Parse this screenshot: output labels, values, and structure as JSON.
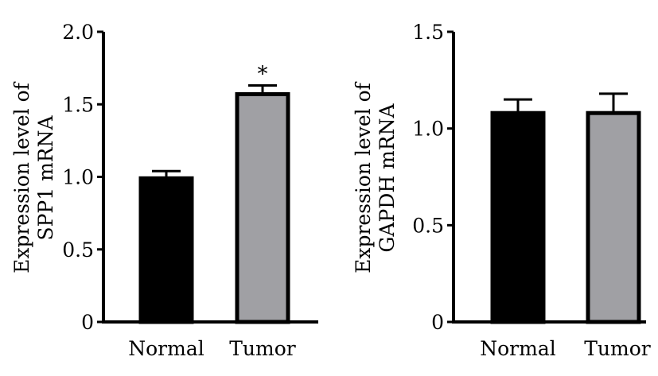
{
  "chart_data": [
    {
      "type": "bar",
      "title": "",
      "ylabel_lines": [
        "Expression level of",
        "SPP1 mRNA"
      ],
      "xlabel": "",
      "categories": [
        "Normal",
        "Tumor"
      ],
      "values": [
        0.99,
        1.57
      ],
      "errors": [
        0.05,
        0.06
      ],
      "significance": [
        "",
        "*"
      ],
      "bar_colors": [
        "#000000",
        "#a0a0a4"
      ],
      "ylim": [
        0,
        2.0
      ],
      "yticks": [
        0,
        0.5,
        1.0,
        1.5,
        2.0
      ],
      "ytick_labels": [
        "0",
        "0.5",
        "1.0",
        "1.5",
        "2.0"
      ],
      "grid": false,
      "legend": "none"
    },
    {
      "type": "bar",
      "title": "",
      "ylabel_lines": [
        "Expression level of",
        "GAPDH mRNA"
      ],
      "xlabel": "",
      "categories": [
        "Normal",
        "Tumor"
      ],
      "values": [
        1.08,
        1.08
      ],
      "errors": [
        0.07,
        0.1
      ],
      "significance": [
        "",
        ""
      ],
      "bar_colors": [
        "#000000",
        "#a0a0a4"
      ],
      "ylim": [
        0,
        1.5
      ],
      "yticks": [
        0,
        0.5,
        1.0,
        1.5
      ],
      "ytick_labels": [
        "0",
        "0.5",
        "1.0",
        "1.5"
      ],
      "grid": false,
      "legend": "none"
    }
  ]
}
